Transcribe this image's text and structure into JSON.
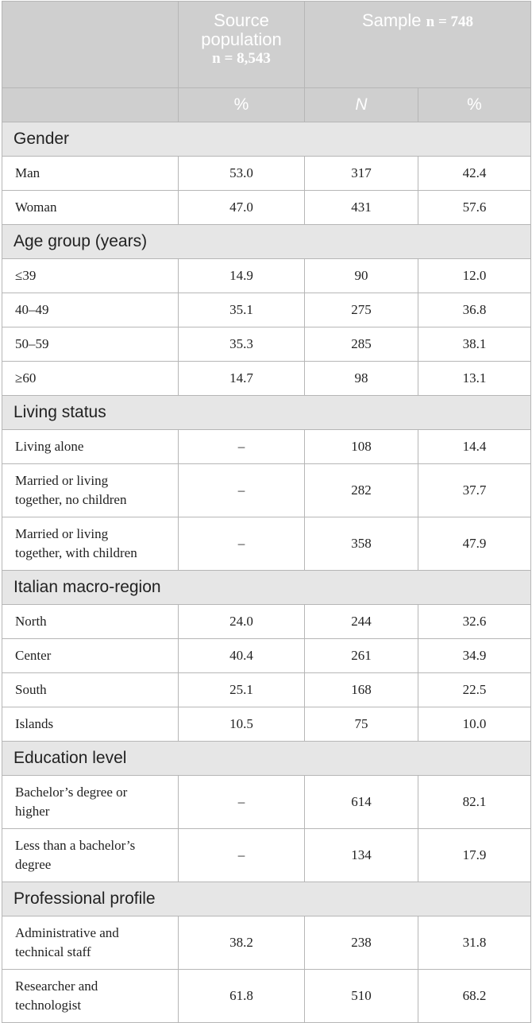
{
  "header": {
    "source_population_line1": "Source",
    "source_population_line2": "population",
    "source_population_n": "n = 8,543",
    "sample_label": "Sample",
    "sample_n": "n = 748",
    "col_pct_source": "%",
    "col_n_sample": "N",
    "col_pct_sample": "%"
  },
  "sections": [
    {
      "title": "Gender",
      "rows": [
        {
          "label": "Man",
          "source_pct": "53.0",
          "n": "317",
          "pct": "42.4"
        },
        {
          "label": "Woman",
          "source_pct": "47.0",
          "n": "431",
          "pct": "57.6"
        }
      ]
    },
    {
      "title": "Age group (years)",
      "rows": [
        {
          "label": "≤39",
          "source_pct": "14.9",
          "n": "90",
          "pct": "12.0"
        },
        {
          "label": "40–49",
          "source_pct": "35.1",
          "n": "275",
          "pct": "36.8"
        },
        {
          "label": "50–59",
          "source_pct": "35.3",
          "n": "285",
          "pct": "38.1"
        },
        {
          "label": "≥60",
          "source_pct": "14.7",
          "n": "98",
          "pct": "13.1"
        }
      ]
    },
    {
      "title": "Living status",
      "rows": [
        {
          "label": "Living alone",
          "source_pct": "–",
          "n": "108",
          "pct": "14.4"
        },
        {
          "label_line1": "Married or living",
          "label_line2": "together, no children",
          "source_pct": "–",
          "n": "282",
          "pct": "37.7"
        },
        {
          "label_line1": "Married or living",
          "label_line2": "together, with children",
          "source_pct": "–",
          "n": "358",
          "pct": "47.9"
        }
      ]
    },
    {
      "title": "Italian macro-region",
      "rows": [
        {
          "label": "North",
          "source_pct": "24.0",
          "n": "244",
          "pct": "32.6"
        },
        {
          "label": "Center",
          "source_pct": "40.4",
          "n": "261",
          "pct": "34.9"
        },
        {
          "label": "South",
          "source_pct": "25.1",
          "n": "168",
          "pct": "22.5"
        },
        {
          "label": "Islands",
          "source_pct": "10.5",
          "n": "75",
          "pct": "10.0"
        }
      ]
    },
    {
      "title": "Education level",
      "rows": [
        {
          "label_line1": "Bachelor’s degree or",
          "label_line2": "higher",
          "source_pct": "–",
          "n": "614",
          "pct": "82.1"
        },
        {
          "label_line1": "Less than a bachelor’s",
          "label_line2": "degree",
          "source_pct": "–",
          "n": "134",
          "pct": "17.9"
        }
      ]
    },
    {
      "title": "Professional profile",
      "rows": [
        {
          "label_line1": "Administrative and",
          "label_line2": "technical staff",
          "source_pct": "38.2",
          "n": "238",
          "pct": "31.8"
        },
        {
          "label_line1": "Researcher and",
          "label_line2": "technologist",
          "source_pct": "61.8",
          "n": "510",
          "pct": "68.2"
        }
      ]
    }
  ]
}
